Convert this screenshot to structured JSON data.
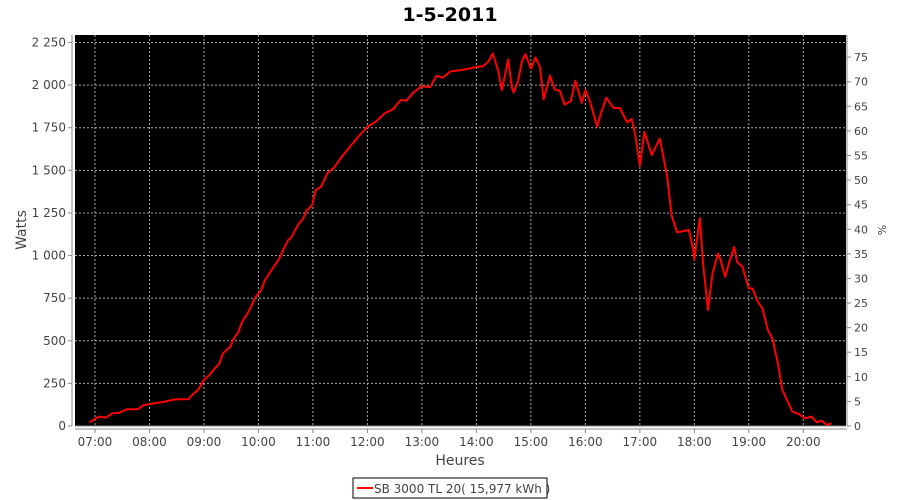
{
  "chart_data": {
    "type": "line",
    "title": "1-5-2011",
    "xlabel": "Heures",
    "ylabel": "Watts",
    "y2label": "%",
    "xlim": [
      "06:38",
      "20:47"
    ],
    "ylim": [
      0,
      2294
    ],
    "y2lim": [
      0,
      79.5
    ],
    "x_ticks": [
      "07:00",
      "08:00",
      "09:00",
      "10:00",
      "11:00",
      "12:00",
      "13:00",
      "14:00",
      "15:00",
      "16:00",
      "17:00",
      "18:00",
      "19:00",
      "20:00"
    ],
    "y_ticks": [
      0,
      250,
      500,
      750,
      1000,
      1250,
      1500,
      1750,
      2000,
      2250
    ],
    "y_tick_labels": [
      "0",
      "250",
      "500",
      "750",
      "1 000",
      "1 250",
      "1 500",
      "1 750",
      "2 000",
      "2 250"
    ],
    "y2_ticks": [
      "0",
      "5",
      "10",
      "15",
      "20",
      "25",
      "30",
      "35",
      "40",
      "45",
      "50",
      "55",
      "60",
      "65",
      "70",
      "75"
    ],
    "grid": true,
    "background": "#000000",
    "legend_position": "bottom",
    "series": [
      {
        "name": "SB 3000 TL 20( 15,977 kWh )",
        "color": "#ff0000",
        "x": [
          "06:54",
          "07:04",
          "07:12",
          "07:19",
          "07:27",
          "07:35",
          "07:47",
          "07:54",
          "08:06",
          "08:17",
          "08:28",
          "08:43",
          "08:47",
          "08:54",
          "09:00",
          "09:06",
          "09:12",
          "09:17",
          "09:21",
          "09:29",
          "09:32",
          "09:38",
          "09:42",
          "09:49",
          "09:57",
          "10:03",
          "10:07",
          "10:12",
          "10:18",
          "10:23",
          "10:27",
          "10:33",
          "10:36",
          "10:44",
          "10:49",
          "10:53",
          "10:59",
          "11:03",
          "11:09",
          "11:16",
          "11:23",
          "11:31",
          "11:40",
          "11:51",
          "12:00",
          "12:10",
          "12:19",
          "12:28",
          "12:37",
          "12:43",
          "12:50",
          "13:00",
          "13:09",
          "13:16",
          "13:23",
          "13:31",
          "13:45",
          "14:00",
          "14:07",
          "14:13",
          "14:18",
          "14:24",
          "14:28",
          "14:31",
          "14:35",
          "14:39",
          "14:41",
          "14:46",
          "14:50",
          "14:54",
          "15:00",
          "15:05",
          "15:10",
          "15:14",
          "15:21",
          "15:26",
          "15:32",
          "15:37",
          "15:44",
          "15:49",
          "15:56",
          "16:00",
          "16:05",
          "16:13",
          "16:16",
          "16:23",
          "16:31",
          "16:38",
          "16:46",
          "16:51",
          "16:55",
          "17:00",
          "17:05",
          "17:13",
          "17:22",
          "17:30",
          "17:35",
          "17:41",
          "17:54",
          "17:59",
          "18:00",
          "18:06",
          "18:10",
          "18:15",
          "18:20",
          "18:26",
          "18:29",
          "18:34",
          "18:39",
          "18:44",
          "18:47",
          "18:53",
          "19:00",
          "19:04",
          "19:10",
          "19:15",
          "19:21",
          "19:26",
          "19:32",
          "19:37",
          "19:48",
          "19:55",
          "20:02",
          "20:09",
          "20:15",
          "20:20",
          "20:26",
          "20:31"
        ],
        "values": [
          21,
          55,
          49,
          74,
          78,
          98,
          98,
          123,
          133,
          143,
          156,
          158,
          182,
          215,
          270,
          299,
          338,
          367,
          426,
          465,
          504,
          553,
          611,
          670,
          758,
          797,
          855,
          895,
          943,
          982,
          1031,
          1094,
          1104,
          1184,
          1214,
          1264,
          1294,
          1384,
          1404,
          1484,
          1514,
          1574,
          1634,
          1704,
          1754,
          1788,
          1834,
          1858,
          1914,
          1908,
          1954,
          1994,
          1988,
          2054,
          2044,
          2080,
          2090,
          2106,
          2110,
          2136,
          2186,
          2086,
          1970,
          2046,
          2150,
          1986,
          1956,
          2026,
          2136,
          2182,
          2096,
          2162,
          2106,
          1916,
          2056,
          1976,
          1966,
          1886,
          1906,
          2026,
          1896,
          1970,
          1906,
          1756,
          1816,
          1926,
          1866,
          1866,
          1782,
          1802,
          1706,
          1526,
          1726,
          1590,
          1686,
          1466,
          1236,
          1136,
          1150,
          1026,
          975,
          1220,
          933,
          680,
          894,
          1012,
          973,
          875,
          973,
          1050,
          963,
          934,
          807,
          807,
          728,
          689,
          562,
          514,
          367,
          211,
          84,
          70,
          45,
          55,
          21,
          31,
          6,
          16
        ]
      }
    ]
  }
}
